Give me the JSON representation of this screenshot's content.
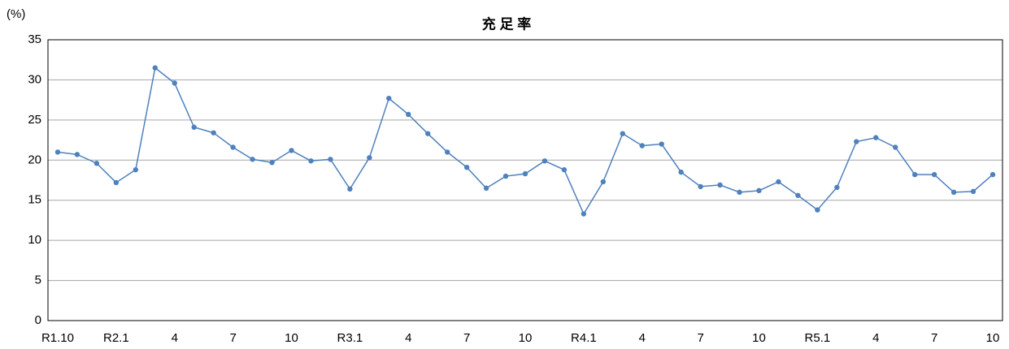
{
  "chart_data": {
    "type": "line",
    "title": "充 足 率",
    "y_label": "(%)",
    "categories": [
      "R1.10",
      null,
      null,
      "R2.1",
      null,
      null,
      "4",
      null,
      null,
      "7",
      null,
      null,
      "10",
      null,
      null,
      "R3.1",
      null,
      null,
      "4",
      null,
      null,
      "7",
      null,
      null,
      "10",
      null,
      null,
      "R4.1",
      null,
      null,
      "4",
      null,
      null,
      "7",
      null,
      null,
      "10",
      null,
      null,
      "R5.1",
      null,
      null,
      "4",
      null,
      null,
      "7",
      null,
      null,
      "10"
    ],
    "series": [
      {
        "name": "充足率",
        "color": "#4f81bd",
        "values": [
          21.0,
          20.7,
          19.6,
          17.2,
          18.8,
          31.5,
          29.6,
          24.1,
          23.4,
          21.6,
          20.1,
          19.7,
          21.2,
          19.9,
          20.1,
          16.4,
          20.3,
          27.7,
          25.7,
          23.3,
          21.0,
          19.1,
          16.5,
          18.0,
          18.3,
          19.9,
          18.8,
          13.3,
          17.3,
          23.3,
          21.8,
          22.0,
          18.5,
          16.7,
          16.9,
          16.0,
          16.2,
          17.3,
          15.6,
          13.8,
          16.6,
          22.3,
          22.8,
          21.6,
          18.2,
          18.2,
          16.0,
          16.1,
          18.2
        ]
      }
    ],
    "ylim": [
      0,
      35
    ],
    "yticks": [
      0,
      5,
      10,
      15,
      20,
      25,
      30,
      35
    ],
    "grid": true
  }
}
